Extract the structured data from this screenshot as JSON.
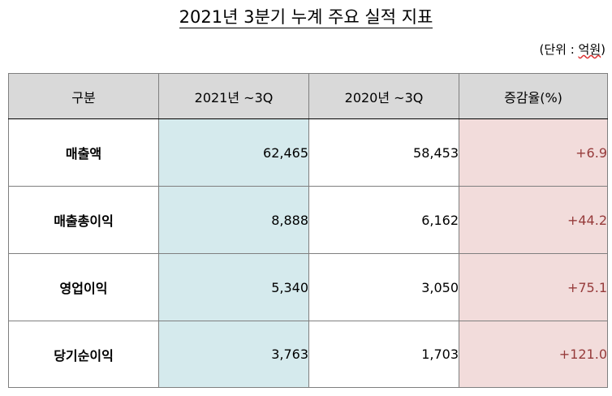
{
  "title": "2021년 3분기 누계 주요 실적 지표",
  "unit": {
    "open": "(",
    "label": "단위",
    "sep": " : ",
    "value": "억원",
    "close": ")"
  },
  "table": {
    "headers": [
      "구분",
      "2021년 ~3Q",
      "2020년 ~3Q",
      "증감율(%)"
    ],
    "rows": [
      {
        "label": "매출액",
        "current": "62,465",
        "previous": "58,453",
        "change": "+6.9"
      },
      {
        "label": "매출총이익",
        "current": "8,888",
        "previous": "6,162",
        "change": "+44.2"
      },
      {
        "label": "영업이익",
        "current": "5,340",
        "previous": "3,050",
        "change": "+75.1"
      },
      {
        "label": "당기순이익",
        "current": "3,763",
        "previous": "1,703",
        "change": "+121.0"
      }
    ]
  },
  "colors": {
    "header_bg": "#d9d9d9",
    "current_col_bg": "#d5eaed",
    "change_col_bg": "#f2dcdb",
    "change_text": "#963b3b"
  }
}
